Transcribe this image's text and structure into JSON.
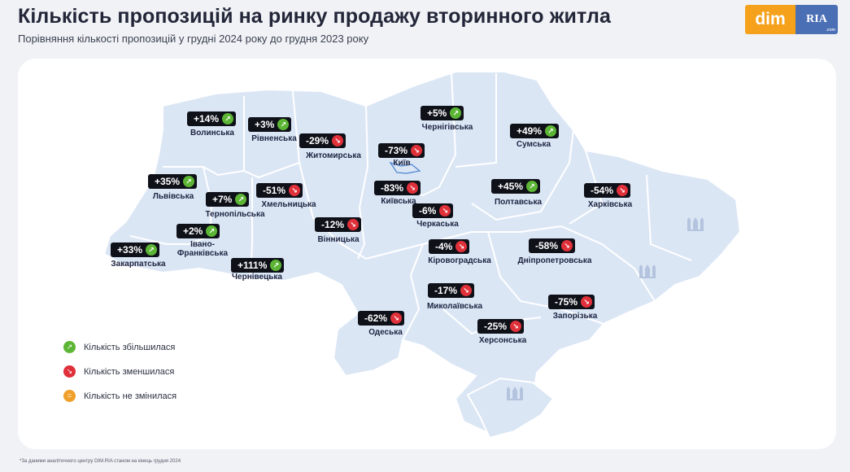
{
  "header": {
    "title": "Кількість пропозицій на ринку продажу вторинного житла",
    "subtitle": "Порівняння кількості пропозицій у грудні 2024 року до грудня 2023 року"
  },
  "logo": {
    "dim_text": "dim",
    "ria_text": "RIA",
    "ria_sub": ".com"
  },
  "colors": {
    "increase": "#5cb534",
    "decrease": "#e0303a",
    "unchanged": "#f0a02a",
    "map_fill": "#dbe6f5",
    "badge_bg": "#0f1119"
  },
  "icons": {
    "up": "arrow-up-right-icon",
    "down": "arrow-down-right-icon",
    "same": "equals-icon"
  },
  "regions": [
    {
      "name": "Волинська",
      "value": "+14%",
      "trend": "up"
    },
    {
      "name": "Рівненська",
      "value": "+3%",
      "trend": "up"
    },
    {
      "name": "Житомирська",
      "value": "-29%",
      "trend": "down"
    },
    {
      "name": "Київ",
      "value": "-73%",
      "trend": "down"
    },
    {
      "name": "Чернігівська",
      "value": "+5%",
      "trend": "up"
    },
    {
      "name": "Сумська",
      "value": "+49%",
      "trend": "up"
    },
    {
      "name": "Львівська",
      "value": "+35%",
      "trend": "up"
    },
    {
      "name": "Тернопільська",
      "value": "+7%",
      "trend": "up"
    },
    {
      "name": "Хмельницька",
      "value": "-51%",
      "trend": "down"
    },
    {
      "name": "Київська",
      "value": "-83%",
      "trend": "down"
    },
    {
      "name": "Полтавська",
      "value": "+45%",
      "trend": "up"
    },
    {
      "name": "Харківська",
      "value": "-54%",
      "trend": "down"
    },
    {
      "name": "Івано-Франківська",
      "value": "+2%",
      "trend": "up"
    },
    {
      "name": "Черкаська",
      "value": "-6%",
      "trend": "down"
    },
    {
      "name": "Вінницька",
      "value": "-12%",
      "trend": "down"
    },
    {
      "name": "Закарпатська",
      "value": "+33%",
      "trend": "up"
    },
    {
      "name": "Кіровоградська",
      "value": "-4%",
      "trend": "down"
    },
    {
      "name": "Дніпропетровська",
      "value": "-58%",
      "trend": "down"
    },
    {
      "name": "Чернівецька",
      "value": "+111%",
      "trend": "up"
    },
    {
      "name": "Миколаївська",
      "value": "-17%",
      "trend": "down"
    },
    {
      "name": "Запорізька",
      "value": "-75%",
      "trend": "down"
    },
    {
      "name": "Одеська",
      "value": "-62%",
      "trend": "down"
    },
    {
      "name": "Херсонська",
      "value": "-25%",
      "trend": "down"
    }
  ],
  "legend": [
    {
      "trend": "up",
      "label": "Кількість збільшилася"
    },
    {
      "trend": "down",
      "label": "Кількість зменшилася"
    },
    {
      "trend": "same",
      "label": "Кількість не змінилася"
    }
  ],
  "footnote": "*За даними аналітичного центру DIM.RIA станом на кінець грудня 2024"
}
